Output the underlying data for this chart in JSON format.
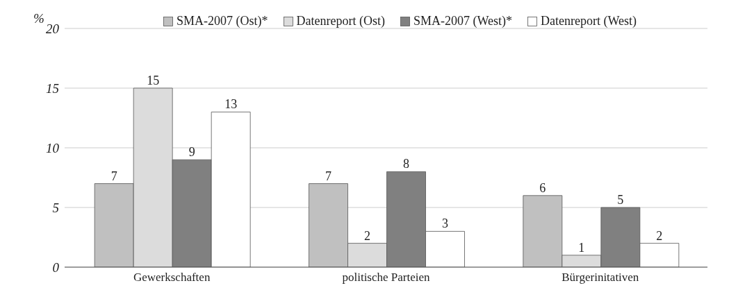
{
  "chart_data": {
    "type": "bar",
    "ylabel": "%",
    "categories": [
      "Gewerkschaften",
      "politische Parteien",
      "Bürgerinitativen"
    ],
    "series": [
      {
        "name": "SMA-2007 (Ost)*",
        "color": "#c0c0c0",
        "values": [
          7,
          7,
          6
        ]
      },
      {
        "name": "Datenreport (Ost)",
        "color": "#dcdcdc",
        "values": [
          15,
          2,
          1
        ]
      },
      {
        "name": "SMA-2007 (West)*",
        "color": "#808080",
        "values": [
          9,
          8,
          5
        ]
      },
      {
        "name": "Datenreport (West)",
        "color": "#ffffff",
        "values": [
          13,
          3,
          2
        ]
      }
    ],
    "ylim": [
      0,
      20
    ],
    "yticks": [
      0,
      5,
      10,
      15,
      20
    ],
    "grid": "y",
    "legend": "top",
    "data_labels": true
  }
}
